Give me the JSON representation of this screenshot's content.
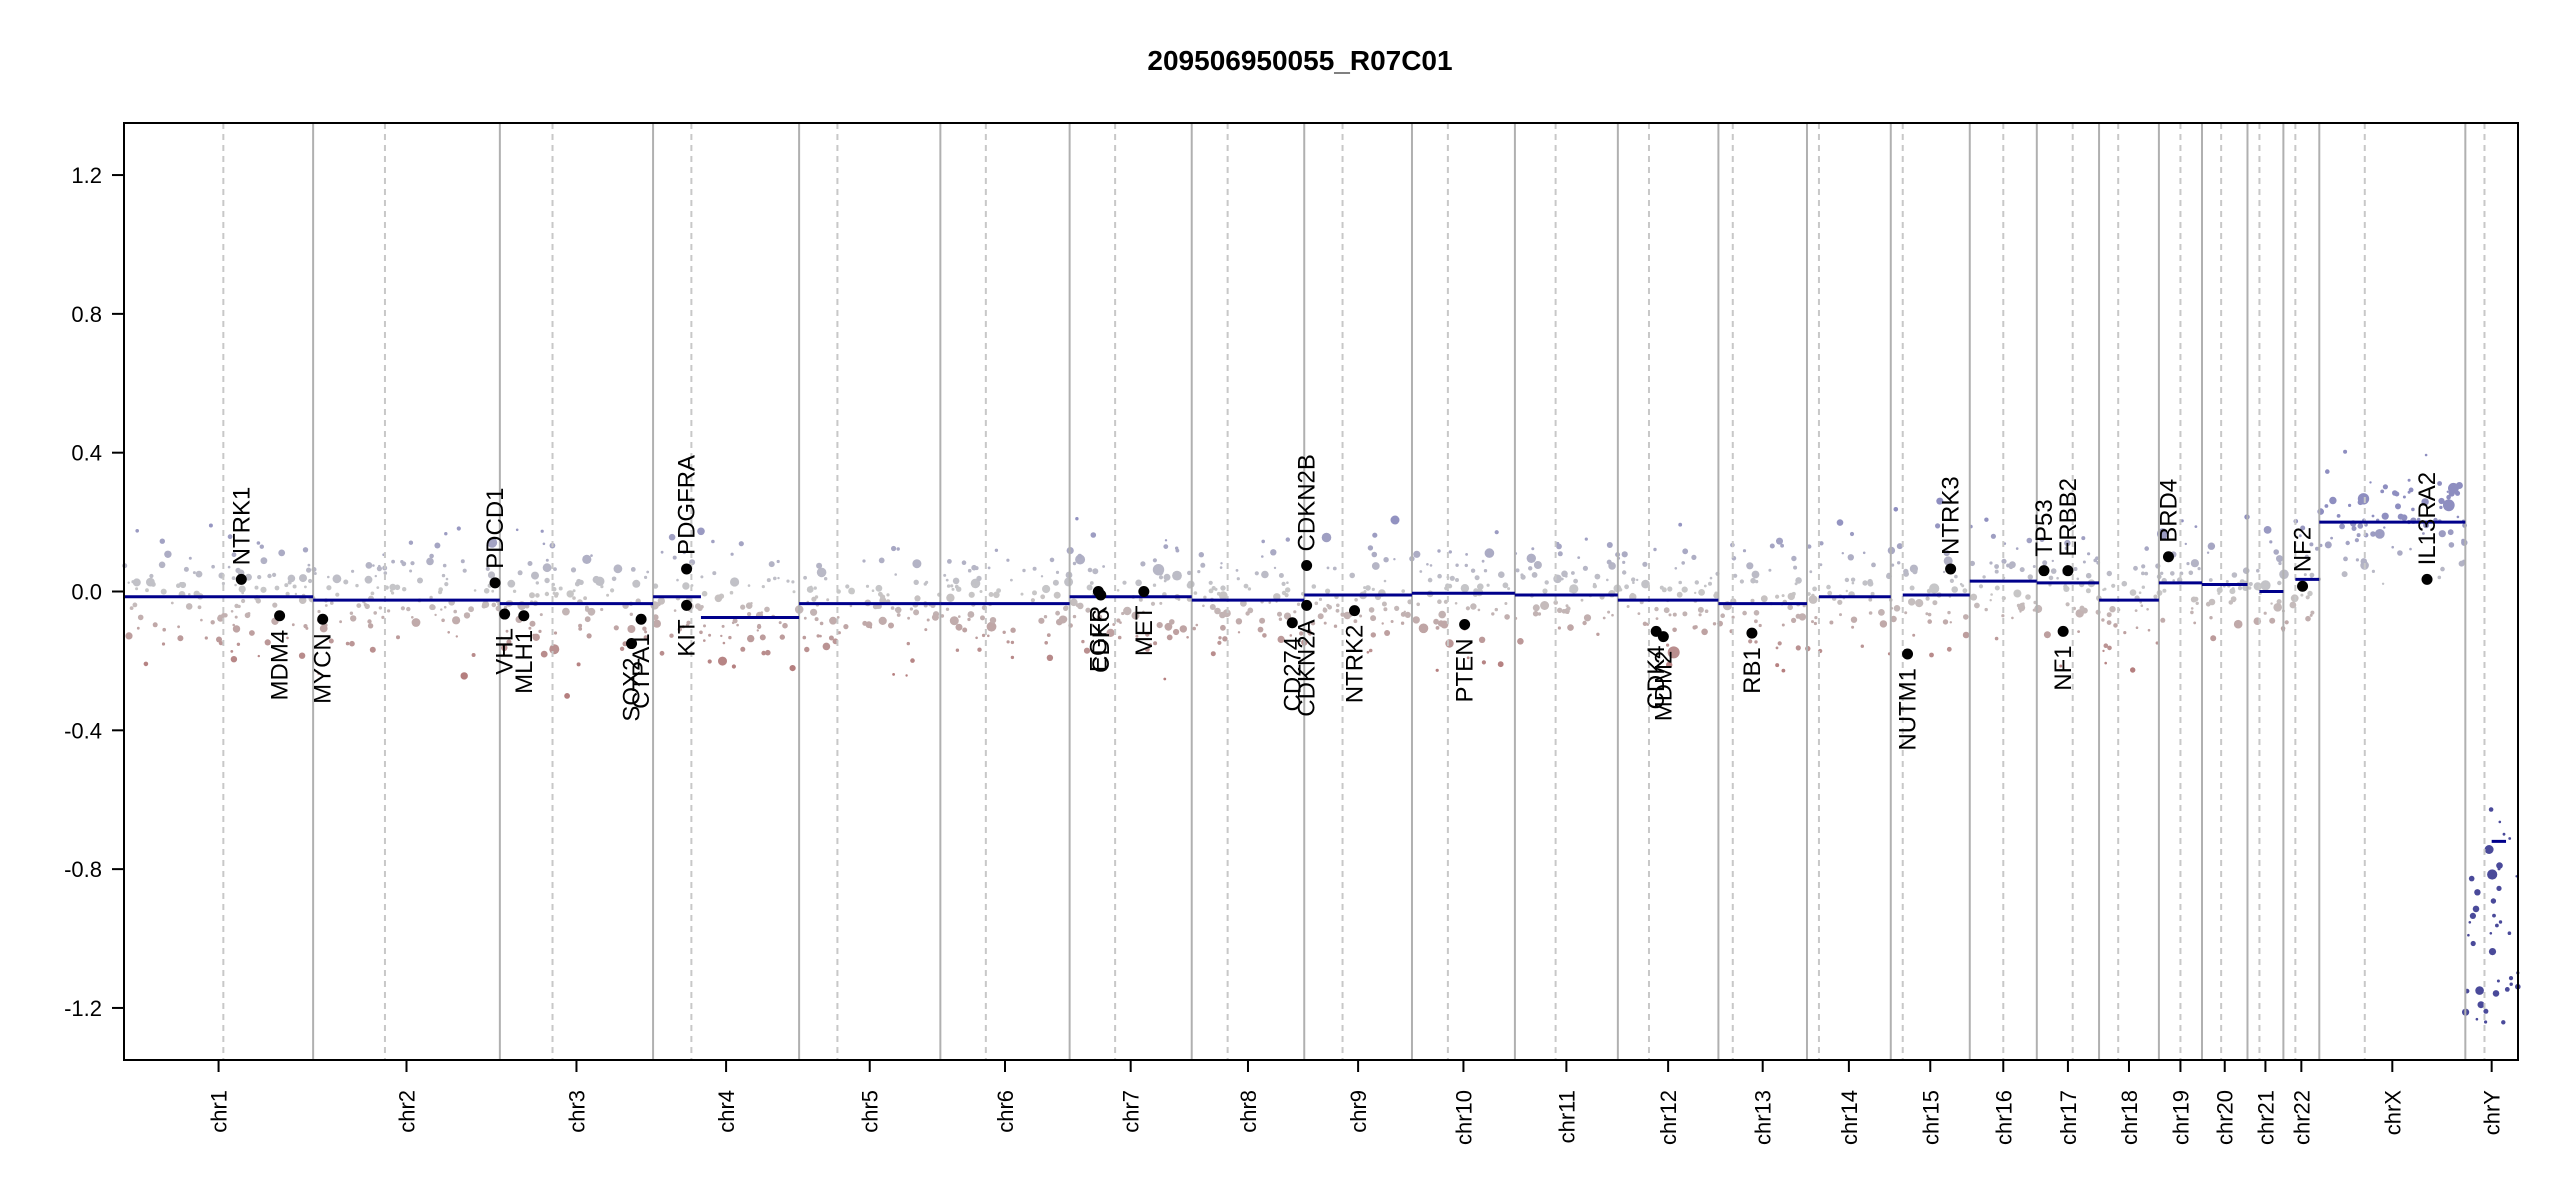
{
  "chart_data": {
    "type": "scatter",
    "title": "209506950055_R07C01",
    "xlabel": "",
    "ylabel": "",
    "ylim": [
      -1.35,
      1.35
    ],
    "y_ticks": [
      1.2,
      0.8,
      0.4,
      0.0,
      -0.4,
      -0.8,
      -1.2
    ],
    "y_tick_labels": [
      "1.2",
      "0.8",
      "0.4",
      "0.0",
      "-0.4",
      "-0.8",
      "-1.2"
    ],
    "grid": false,
    "colors": {
      "gain": "#8e8ec0",
      "neutral": "#c8c8c8",
      "loss": "#b57f7f",
      "segment": "#00008b",
      "gene_dot": "#000000",
      "chrom_border": "#b0b0b0",
      "centromere": "#c8c8c8"
    },
    "chromosomes": [
      {
        "name": "chr1",
        "start": 0.0,
        "end": 0.079,
        "centromere": 0.0415,
        "segments": [
          {
            "s": 0.0,
            "e": 0.079,
            "v": -0.015
          }
        ]
      },
      {
        "name": "chr2",
        "start": 0.079,
        "end": 0.157,
        "centromere": 0.109,
        "segments": [
          {
            "s": 0.079,
            "e": 0.157,
            "v": -0.025
          }
        ]
      },
      {
        "name": "chr3",
        "start": 0.157,
        "end": 0.221,
        "centromere": 0.179,
        "segments": [
          {
            "s": 0.157,
            "e": 0.221,
            "v": -0.035
          }
        ]
      },
      {
        "name": "chr4",
        "start": 0.221,
        "end": 0.282,
        "centromere": 0.237,
        "segments": [
          {
            "s": 0.221,
            "e": 0.241,
            "v": -0.015
          },
          {
            "s": 0.241,
            "e": 0.282,
            "v": -0.075
          }
        ]
      },
      {
        "name": "chr5",
        "start": 0.282,
        "end": 0.341,
        "centromere": 0.298,
        "segments": [
          {
            "s": 0.282,
            "e": 0.341,
            "v": -0.035
          }
        ]
      },
      {
        "name": "chr6",
        "start": 0.341,
        "end": 0.395,
        "centromere": 0.36,
        "segments": [
          {
            "s": 0.341,
            "e": 0.395,
            "v": -0.035
          }
        ]
      },
      {
        "name": "chr7",
        "start": 0.395,
        "end": 0.446,
        "centromere": 0.414,
        "segments": [
          {
            "s": 0.395,
            "e": 0.446,
            "v": -0.015
          }
        ]
      },
      {
        "name": "chr8",
        "start": 0.446,
        "end": 0.493,
        "centromere": 0.461,
        "segments": [
          {
            "s": 0.446,
            "e": 0.493,
            "v": -0.025
          }
        ]
      },
      {
        "name": "chr9",
        "start": 0.493,
        "end": 0.538,
        "centromere": 0.509,
        "segments": [
          {
            "s": 0.493,
            "e": 0.538,
            "v": -0.01
          }
        ]
      },
      {
        "name": "chr10",
        "start": 0.538,
        "end": 0.581,
        "centromere": 0.553,
        "segments": [
          {
            "s": 0.538,
            "e": 0.581,
            "v": -0.005
          }
        ]
      },
      {
        "name": "chr11",
        "start": 0.581,
        "end": 0.624,
        "centromere": 0.598,
        "segments": [
          {
            "s": 0.581,
            "e": 0.624,
            "v": -0.01
          }
        ]
      },
      {
        "name": "chr12",
        "start": 0.624,
        "end": 0.666,
        "centromere": 0.637,
        "segments": [
          {
            "s": 0.624,
            "e": 0.666,
            "v": -0.025
          }
        ]
      },
      {
        "name": "chr13",
        "start": 0.666,
        "end": 0.703,
        "centromere": 0.672,
        "segments": [
          {
            "s": 0.666,
            "e": 0.703,
            "v": -0.035
          }
        ]
      },
      {
        "name": "chr14",
        "start": 0.703,
        "end": 0.738,
        "centromere": 0.708,
        "segments": [
          {
            "s": 0.708,
            "e": 0.738,
            "v": -0.015
          }
        ]
      },
      {
        "name": "chr15",
        "start": 0.738,
        "end": 0.771,
        "centromere": 0.743,
        "segments": [
          {
            "s": 0.743,
            "e": 0.771,
            "v": -0.01
          }
        ]
      },
      {
        "name": "chr16",
        "start": 0.771,
        "end": 0.799,
        "centromere": 0.785,
        "segments": [
          {
            "s": 0.771,
            "e": 0.799,
            "v": 0.03
          }
        ]
      },
      {
        "name": "chr17",
        "start": 0.799,
        "end": 0.825,
        "centromere": 0.814,
        "segments": [
          {
            "s": 0.799,
            "e": 0.825,
            "v": 0.025
          }
        ]
      },
      {
        "name": "chr18",
        "start": 0.825,
        "end": 0.85,
        "centromere": 0.833,
        "segments": [
          {
            "s": 0.825,
            "e": 0.85,
            "v": -0.025
          }
        ]
      },
      {
        "name": "chr19",
        "start": 0.85,
        "end": 0.868,
        "centromere": 0.859,
        "segments": [
          {
            "s": 0.85,
            "e": 0.868,
            "v": 0.025
          }
        ]
      },
      {
        "name": "chr20",
        "start": 0.868,
        "end": 0.887,
        "centromere": 0.876,
        "segments": [
          {
            "s": 0.868,
            "e": 0.887,
            "v": 0.02
          }
        ]
      },
      {
        "name": "chr21",
        "start": 0.887,
        "end": 0.902,
        "centromere": 0.892,
        "segments": [
          {
            "s": 0.892,
            "e": 0.902,
            "v": 0.0
          }
        ]
      },
      {
        "name": "chr22",
        "start": 0.902,
        "end": 0.917,
        "centromere": 0.907,
        "segments": [
          {
            "s": 0.907,
            "e": 0.917,
            "v": 0.035
          }
        ]
      },
      {
        "name": "chrX",
        "start": 0.917,
        "end": 0.978,
        "centromere": 0.936,
        "segments": [
          {
            "s": 0.917,
            "e": 0.978,
            "v": 0.2
          }
        ]
      },
      {
        "name": "chrY",
        "start": 0.978,
        "end": 1.0,
        "centromere": 0.986,
        "segments": [
          {
            "s": 0.989,
            "e": 0.995,
            "v": -0.72
          }
        ]
      }
    ],
    "genes": [
      {
        "name": "NTRK1",
        "pos": 0.049,
        "v": 0.035,
        "label": "above"
      },
      {
        "name": "MDM4",
        "pos": 0.065,
        "v": -0.07,
        "label": "below"
      },
      {
        "name": "MYCN",
        "pos": 0.083,
        "v": -0.08,
        "label": "below"
      },
      {
        "name": "PDCD1",
        "pos": 0.155,
        "v": 0.025,
        "label": "above"
      },
      {
        "name": "VHL",
        "pos": 0.159,
        "v": -0.065,
        "label": "below"
      },
      {
        "name": "MLH1",
        "pos": 0.167,
        "v": -0.07,
        "label": "below"
      },
      {
        "name": "SOX2",
        "pos": 0.212,
        "v": -0.15,
        "label": "below"
      },
      {
        "name": "CTPA1",
        "pos": 0.216,
        "v": -0.08,
        "label": "below"
      },
      {
        "name": "PDGFRA",
        "pos": 0.235,
        "v": 0.065,
        "label": "above"
      },
      {
        "name": "KIT",
        "pos": 0.235,
        "v": -0.04,
        "label": "below"
      },
      {
        "name": "EGFR",
        "pos": 0.407,
        "v": 0.0,
        "label": "below"
      },
      {
        "name": "CDK6",
        "pos": 0.408,
        "v": -0.01,
        "label": "below"
      },
      {
        "name": "MET",
        "pos": 0.426,
        "v": 0.0,
        "label": "below"
      },
      {
        "name": "CDKN2B",
        "pos": 0.494,
        "v": 0.075,
        "label": "above"
      },
      {
        "name": "CD274",
        "pos": 0.488,
        "v": -0.09,
        "label": "below"
      },
      {
        "name": "CDKN2A",
        "pos": 0.494,
        "v": -0.04,
        "label": "below"
      },
      {
        "name": "NTRK2",
        "pos": 0.514,
        "v": -0.055,
        "label": "below"
      },
      {
        "name": "PTEN",
        "pos": 0.56,
        "v": -0.095,
        "label": "below"
      },
      {
        "name": "CDK4",
        "pos": 0.64,
        "v": -0.115,
        "label": "below"
      },
      {
        "name": "MDM2",
        "pos": 0.643,
        "v": -0.13,
        "label": "below"
      },
      {
        "name": "RB1",
        "pos": 0.68,
        "v": -0.12,
        "label": "below"
      },
      {
        "name": "NUTM1",
        "pos": 0.745,
        "v": -0.18,
        "label": "below"
      },
      {
        "name": "NTRK3",
        "pos": 0.763,
        "v": 0.065,
        "label": "above"
      },
      {
        "name": "TP53",
        "pos": 0.802,
        "v": 0.06,
        "label": "above"
      },
      {
        "name": "ERBB2",
        "pos": 0.812,
        "v": 0.06,
        "label": "above"
      },
      {
        "name": "NF1",
        "pos": 0.81,
        "v": -0.115,
        "label": "below"
      },
      {
        "name": "BRD4",
        "pos": 0.854,
        "v": 0.1,
        "label": "above"
      },
      {
        "name": "NF2",
        "pos": 0.91,
        "v": 0.015,
        "label": "above"
      },
      {
        "name": "IL13RA2",
        "pos": 0.962,
        "v": 0.035,
        "label": "above"
      }
    ]
  }
}
